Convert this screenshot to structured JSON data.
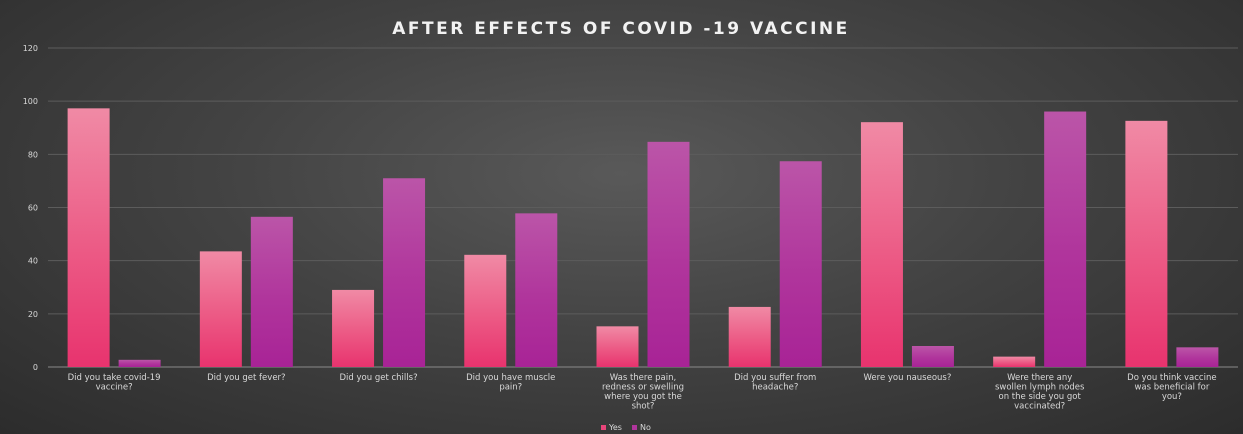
{
  "chart_data": {
    "type": "bar",
    "title": "AFTER EFFECTS OF COVID -19 VACCINE",
    "categories": [
      [
        "Did you take covid-19",
        "vaccine?"
      ],
      [
        "Did you get fever?"
      ],
      [
        "Did you get chills?"
      ],
      [
        "Did you have muscle",
        "pain?"
      ],
      [
        "Was there pain,",
        "redness or swelling",
        "where you got the",
        "shot?"
      ],
      [
        "Did you suffer from",
        "headache?"
      ],
      [
        "Were you nauseous?"
      ],
      [
        "Were there any",
        "swollen lymph nodes",
        "on the side you got",
        "vaccinated?"
      ],
      [
        "Do you think vaccine",
        "was beneficial for",
        "you?"
      ]
    ],
    "series": [
      {
        "name": "Yes",
        "color": "#e8457a",
        "values": [
          97.3,
          43.5,
          29.0,
          42.2,
          15.3,
          22.6,
          92.1,
          3.9,
          92.6
        ]
      },
      {
        "name": "No",
        "color": "#b0359c",
        "values": [
          2.7,
          56.5,
          71.0,
          57.8,
          84.7,
          77.4,
          7.9,
          96.1,
          7.4
        ]
      }
    ],
    "ylim": [
      0,
      120
    ],
    "yticks": [
      "0",
      "20",
      "40",
      "60",
      "80",
      "100",
      "120"
    ],
    "grid": true,
    "legend_position": "bottom"
  }
}
